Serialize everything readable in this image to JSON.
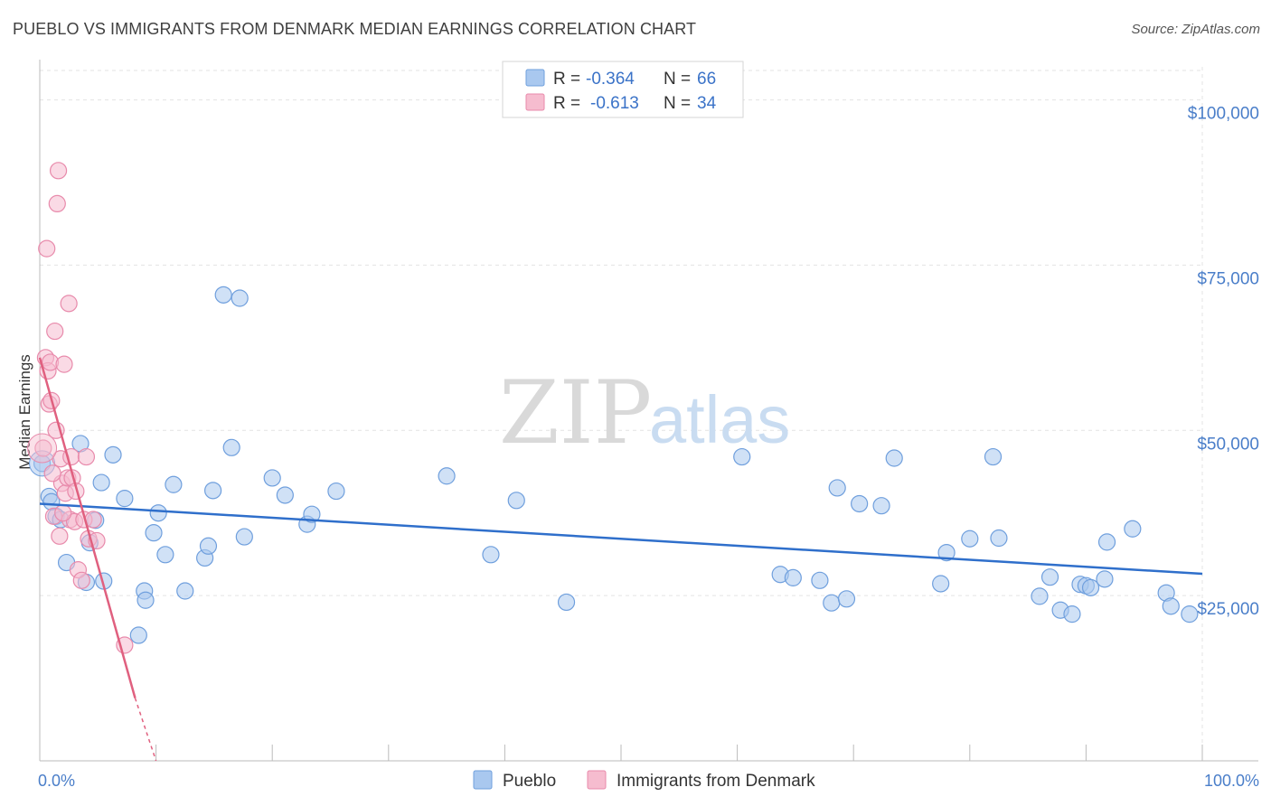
{
  "title": "PUEBLO VS IMMIGRANTS FROM DENMARK MEDIAN EARNINGS CORRELATION CHART",
  "source": "Source: ZipAtlas.com",
  "watermark": {
    "zip": "ZIP",
    "atlas": "atlas"
  },
  "colors": {
    "pueblo_fill": "#a9c8ef",
    "pueblo_stroke": "#6f9fdd",
    "pueblo_line": "#2f6fcb",
    "denmark_fill": "#f6bccf",
    "denmark_stroke": "#e88aab",
    "denmark_line": "#e0607f",
    "tick_label": "#4a7ec9",
    "grid": "#e3e3e3"
  },
  "legend": {
    "rows": [
      {
        "r_label": "R =",
        "r_value": "-0.364",
        "n_label": "N =",
        "n_value": "66"
      },
      {
        "r_label": "R =",
        "r_value": "-0.613",
        "n_label": "N =",
        "n_value": "34"
      }
    ]
  },
  "chart_data": {
    "type": "scatter",
    "title": "PUEBLO VS IMMIGRANTS FROM DENMARK MEDIAN EARNINGS CORRELATION CHART",
    "xlabel": "",
    "ylabel": "Median Earnings",
    "xlim": [
      0,
      100
    ],
    "ylim": [
      0,
      105000
    ],
    "x_tick_labels": [
      {
        "value": 0,
        "label": "0.0%"
      },
      {
        "value": 100,
        "label": "100.0%"
      }
    ],
    "y_tick_labels": [
      {
        "value": 25000,
        "label": "$25,000"
      },
      {
        "value": 50000,
        "label": "$50,000"
      },
      {
        "value": 75000,
        "label": "$75,000"
      },
      {
        "value": 100000,
        "label": "$100,000"
      }
    ],
    "x_minor_ticks": [
      10,
      20,
      30,
      40,
      50,
      60,
      70,
      80,
      90,
      100
    ],
    "grid": true,
    "legend_position": "top-center",
    "series": [
      {
        "name": "Pueblo",
        "r": -0.364,
        "n": 66,
        "trend": {
          "x": [
            0,
            100
          ],
          "y": [
            38900,
            28300
          ]
        },
        "points": [
          [
            0.2,
            45000
          ],
          [
            0.8,
            40000
          ],
          [
            1.4,
            37000
          ],
          [
            1.8,
            36500
          ],
          [
            2.3,
            30000
          ],
          [
            3.5,
            48000
          ],
          [
            4.0,
            27000
          ],
          [
            4.3,
            33000
          ],
          [
            4.8,
            36400
          ],
          [
            5.3,
            42100
          ],
          [
            5.5,
            27200
          ],
          [
            6.3,
            46300
          ],
          [
            7.3,
            39700
          ],
          [
            8.5,
            19000
          ],
          [
            9.0,
            25700
          ],
          [
            9.1,
            24300
          ],
          [
            9.8,
            34500
          ],
          [
            10.2,
            37500
          ],
          [
            10.8,
            31200
          ],
          [
            11.5,
            41800
          ],
          [
            12.5,
            25700
          ],
          [
            14.2,
            30700
          ],
          [
            14.5,
            32500
          ],
          [
            14.9,
            40900
          ],
          [
            15.8,
            70500
          ],
          [
            16.5,
            47400
          ],
          [
            17.6,
            33900
          ],
          [
            17.2,
            70000
          ],
          [
            20.0,
            42800
          ],
          [
            21.1,
            40200
          ],
          [
            23.0,
            35800
          ],
          [
            23.4,
            37300
          ],
          [
            25.5,
            40800
          ],
          [
            35.0,
            43100
          ],
          [
            38.8,
            31200
          ],
          [
            41.0,
            39400
          ],
          [
            45.3,
            24000
          ],
          [
            60.4,
            46000
          ],
          [
            63.7,
            28200
          ],
          [
            64.8,
            27700
          ],
          [
            67.1,
            27300
          ],
          [
            68.1,
            23900
          ],
          [
            68.6,
            41300
          ],
          [
            69.4,
            24500
          ],
          [
            70.5,
            38900
          ],
          [
            72.4,
            38600
          ],
          [
            73.5,
            45800
          ],
          [
            77.5,
            26800
          ],
          [
            78.0,
            31500
          ],
          [
            80.0,
            33600
          ],
          [
            82.0,
            46000
          ],
          [
            82.5,
            33700
          ],
          [
            86.0,
            24900
          ],
          [
            86.9,
            27800
          ],
          [
            87.8,
            22800
          ],
          [
            88.8,
            22200
          ],
          [
            89.5,
            26700
          ],
          [
            90.0,
            26500
          ],
          [
            90.4,
            26200
          ],
          [
            91.6,
            27500
          ],
          [
            91.8,
            33100
          ],
          [
            94.0,
            35100
          ],
          [
            96.9,
            25400
          ],
          [
            97.3,
            23400
          ],
          [
            98.9,
            22200
          ],
          [
            1.0,
            39200
          ]
        ]
      },
      {
        "name": "Immigrants from Denmark",
        "r": -0.613,
        "n": 34,
        "trend": {
          "x": [
            0,
            8.2
          ],
          "y": [
            61000,
            9500
          ]
        },
        "trend_dashed": {
          "x": [
            8.2,
            10
          ],
          "y": [
            9500,
            0
          ]
        },
        "points": [
          [
            0.3,
            47300
          ],
          [
            0.6,
            77500
          ],
          [
            0.5,
            61000
          ],
          [
            0.7,
            59000
          ],
          [
            0.8,
            54000
          ],
          [
            0.9,
            60300
          ],
          [
            1.0,
            54500
          ],
          [
            1.2,
            37000
          ],
          [
            1.3,
            65000
          ],
          [
            1.4,
            50000
          ],
          [
            1.5,
            84300
          ],
          [
            1.6,
            89300
          ],
          [
            1.8,
            45700
          ],
          [
            1.9,
            42000
          ],
          [
            2.1,
            60000
          ],
          [
            2.2,
            40500
          ],
          [
            2.4,
            42800
          ],
          [
            2.5,
            69200
          ],
          [
            2.6,
            36500
          ],
          [
            2.7,
            46000
          ],
          [
            2.8,
            42800
          ],
          [
            3.0,
            36200
          ],
          [
            3.1,
            40800
          ],
          [
            3.3,
            28900
          ],
          [
            3.6,
            27300
          ],
          [
            3.8,
            36500
          ],
          [
            4.0,
            46000
          ],
          [
            4.2,
            33600
          ],
          [
            4.6,
            36500
          ],
          [
            4.9,
            33300
          ],
          [
            1.1,
            43500
          ],
          [
            1.7,
            34000
          ],
          [
            7.3,
            17500
          ],
          [
            2.0,
            37500
          ]
        ]
      }
    ]
  }
}
